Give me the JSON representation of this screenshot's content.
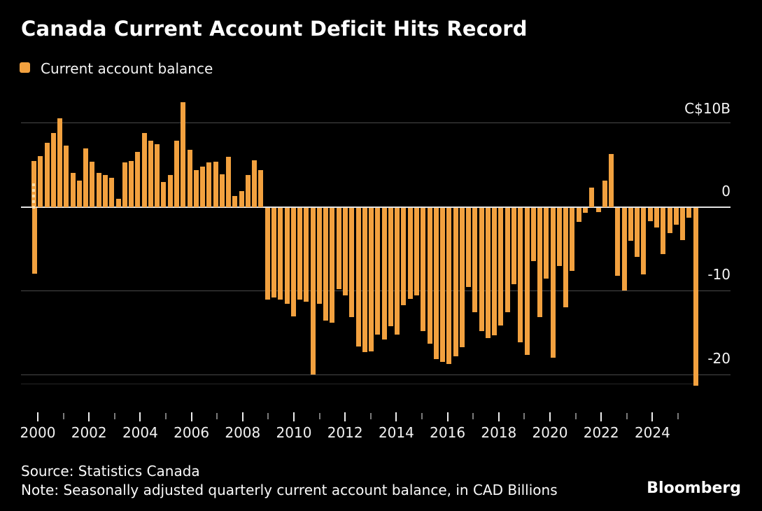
{
  "title": "Canada Current Account Deficit Hits Record",
  "legend": {
    "label": "Current account balance",
    "swatch_color": "#F2A13F"
  },
  "y_axis": {
    "unit_label": "C$10B",
    "labels": [
      "C$10B",
      "0",
      "-10",
      "-20"
    ],
    "gridline_values": [
      10,
      0,
      -10,
      -20
    ]
  },
  "x_axis": {
    "major_tick_labels": [
      "2000",
      "2002",
      "2004",
      "2006",
      "2008",
      "2010",
      "2012",
      "2014",
      "2016",
      "2018",
      "2020",
      "2022",
      "2024"
    ],
    "minor_tick_years": [
      "2001",
      "2003",
      "2005",
      "2007",
      "2009",
      "2011",
      "2013",
      "2015",
      "2017",
      "2019",
      "2021",
      "2023",
      "2025"
    ]
  },
  "footer": {
    "source": "Source: Statistics Canada",
    "note": "Note: Seasonally adjusted quarterly current account balance, in CAD Billions",
    "brand": "Bloomberg"
  },
  "colors": {
    "background": "#000000",
    "bar": "#F2A13F",
    "grid": "#4a4a4a",
    "zero_line": "#e3e3e3",
    "text": "#f5f5f5"
  },
  "chart_data": {
    "type": "bar",
    "title": "Canada Current Account Deficit Hits Record",
    "series_name": "Current account balance",
    "unit": "CAD Billions",
    "frequency": "quarterly",
    "start_period": "2000 Q1",
    "end_period": "2025 Q3",
    "ylabel": "C$10B",
    "ylim": [
      -23,
      13
    ],
    "y_gridlines": [
      10,
      0,
      -10,
      -20
    ],
    "legend_position": "top-left",
    "values": [
      5.5,
      6.1,
      7.7,
      8.8,
      10.6,
      7.3,
      4.1,
      3.2,
      7.0,
      5.4,
      4.1,
      3.8,
      3.5,
      1.0,
      5.3,
      5.5,
      6.6,
      8.8,
      7.9,
      7.5,
      3.0,
      3.8,
      7.9,
      12.5,
      6.8,
      4.4,
      4.8,
      5.3,
      5.4,
      3.9,
      6.0,
      1.3,
      1.9,
      3.8,
      5.6,
      4.4,
      -10.9,
      -10.7,
      -10.9,
      -11.4,
      -12.9,
      -10.9,
      -11.2,
      -19.8,
      -11.4,
      -13.4,
      -13.7,
      -9.7,
      -10.4,
      -13.0,
      -16.5,
      -17.2,
      -17.1,
      -15.1,
      -15.7,
      -14.1,
      -15.1,
      -11.6,
      -10.8,
      -10.4,
      -14.7,
      -16.2,
      -18.0,
      -18.3,
      -18.6,
      -17.7,
      -16.6,
      -9.4,
      -12.4,
      -14.7,
      -15.5,
      -15.2,
      -14.0,
      -12.4,
      -9.1,
      -16.0,
      -17.5,
      -6.3,
      -13.0,
      -8.4,
      -17.8,
      -6.9,
      -11.8,
      -7.5,
      -1.7,
      -0.6,
      2.3,
      -0.5,
      3.2,
      6.3,
      -8.1,
      -9.8,
      -3.9,
      -5.8,
      -7.9,
      -1.6,
      -2.3,
      -5.5,
      -3.0,
      -2.0,
      -3.8,
      -1.2,
      -21.2
    ],
    "leading_anomaly": {
      "period": "2000 Q1",
      "value": -7.8,
      "appearance": "striped down-spike on first bar column"
    }
  }
}
